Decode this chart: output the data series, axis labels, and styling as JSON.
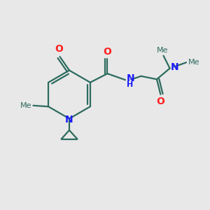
{
  "bg_color": "#e8e8e8",
  "bond_color": "#2d6b5e",
  "N_color": "#1a1aff",
  "O_color": "#ff2020",
  "lw": 1.6,
  "fig_size": [
    3.0,
    3.0
  ],
  "dpi": 100,
  "xlim": [
    0,
    10
  ],
  "ylim": [
    0,
    10
  ]
}
